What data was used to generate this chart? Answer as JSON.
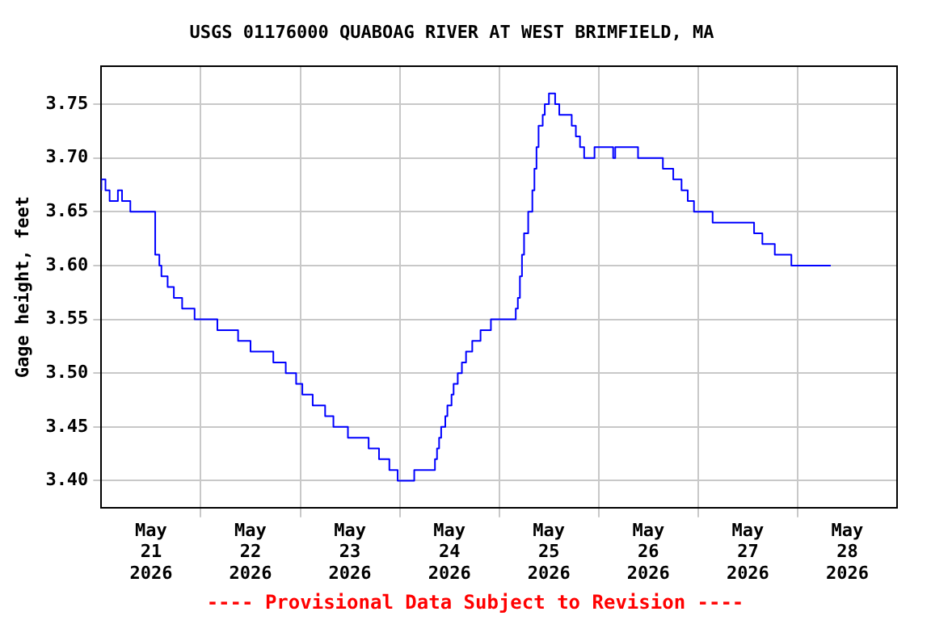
{
  "chart_data": {
    "type": "step",
    "title": "USGS 01176000 QUABOAG RIVER AT WEST BRIMFIELD, MA",
    "ylabel": "Gage height, feet",
    "annotations": [
      "---- Provisional Data Subject to Revision ----"
    ],
    "x": [
      "2026-05-21T00:00",
      "2026-05-21T01:00",
      "2026-05-21T02:00",
      "2026-05-21T04:00",
      "2026-05-21T05:00",
      "2026-05-21T07:00",
      "2026-05-21T13:00",
      "2026-05-21T14:00",
      "2026-05-21T14:30",
      "2026-05-21T16:00",
      "2026-05-21T17:30",
      "2026-05-21T19:30",
      "2026-05-21T22:30",
      "2026-05-22T04:00",
      "2026-05-22T09:00",
      "2026-05-22T12:00",
      "2026-05-22T17:30",
      "2026-05-22T20:30",
      "2026-05-22T23:00",
      "2026-05-23T00:30",
      "2026-05-23T03:00",
      "2026-05-23T06:00",
      "2026-05-23T08:00",
      "2026-05-23T11:30",
      "2026-05-23T16:30",
      "2026-05-23T19:00",
      "2026-05-23T21:30",
      "2026-05-23T23:30",
      "2026-05-24T03:30",
      "2026-05-24T08:30",
      "2026-05-24T09:00",
      "2026-05-24T09:30",
      "2026-05-24T10:00",
      "2026-05-24T11:00",
      "2026-05-24T11:30",
      "2026-05-24T12:30",
      "2026-05-24T13:00",
      "2026-05-24T14:00",
      "2026-05-24T15:00",
      "2026-05-24T16:00",
      "2026-05-24T17:30",
      "2026-05-24T19:30",
      "2026-05-24T22:00",
      "2026-05-25T04:00",
      "2026-05-25T04:30",
      "2026-05-25T05:00",
      "2026-05-25T05:30",
      "2026-05-25T06:00",
      "2026-05-25T07:00",
      "2026-05-25T08:00",
      "2026-05-25T08:30",
      "2026-05-25T09:00",
      "2026-05-25T09:30",
      "2026-05-25T10:30",
      "2026-05-25T11:00",
      "2026-05-25T12:00",
      "2026-05-25T13:30",
      "2026-05-25T14:30",
      "2026-05-25T17:30",
      "2026-05-25T18:30",
      "2026-05-25T19:30",
      "2026-05-25T20:30",
      "2026-05-25T23:00",
      "2026-05-26T03:30",
      "2026-05-26T04:00",
      "2026-05-26T09:30",
      "2026-05-26T15:30",
      "2026-05-26T18:00",
      "2026-05-26T20:00",
      "2026-05-26T21:30",
      "2026-05-26T23:00",
      "2026-05-27T03:30",
      "2026-05-27T13:30",
      "2026-05-27T15:30",
      "2026-05-27T18:30",
      "2026-05-27T22:30",
      "2026-05-28T05:30",
      "2026-05-28T08:00"
    ],
    "series": [
      {
        "color": "#0000ff",
        "values": [
          3.67,
          3.68,
          3.67,
          3.66,
          3.67,
          3.66,
          3.65,
          3.61,
          3.6,
          3.59,
          3.58,
          3.57,
          3.56,
          3.55,
          3.54,
          3.53,
          3.52,
          3.51,
          3.5,
          3.49,
          3.48,
          3.47,
          3.46,
          3.45,
          3.44,
          3.43,
          3.42,
          3.41,
          3.4,
          3.41,
          3.42,
          3.43,
          3.44,
          3.45,
          3.46,
          3.47,
          3.48,
          3.49,
          3.5,
          3.51,
          3.52,
          3.53,
          3.54,
          3.55,
          3.56,
          3.57,
          3.59,
          3.61,
          3.63,
          3.65,
          3.67,
          3.69,
          3.71,
          3.73,
          3.74,
          3.75,
          3.76,
          3.75,
          3.74,
          3.73,
          3.72,
          3.71,
          3.7,
          3.71,
          3.7,
          3.71,
          3.7,
          3.69,
          3.68,
          3.67,
          3.66,
          3.65,
          3.64,
          3.63,
          3.62,
          3.61,
          3.6,
          3.6
        ]
      }
    ],
    "xlim": [
      "2026-05-21T00:00",
      "2026-05-29T00:00"
    ],
    "xticks": [
      {
        "value": "2026-05-21T12:00",
        "label": "May\n21\n2026"
      },
      {
        "value": "2026-05-22T00:00",
        "label": null
      },
      {
        "value": "2026-05-22T12:00",
        "label": "May\n22\n2026"
      },
      {
        "value": "2026-05-23T00:00",
        "label": null
      },
      {
        "value": "2026-05-23T12:00",
        "label": "May\n23\n2026"
      },
      {
        "value": "2026-05-24T00:00",
        "label": null
      },
      {
        "value": "2026-05-24T12:00",
        "label": "May\n24\n2026"
      },
      {
        "value": "2026-05-25T00:00",
        "label": null
      },
      {
        "value": "2026-05-25T12:00",
        "label": "May\n25\n2026"
      },
      {
        "value": "2026-05-26T00:00",
        "label": null
      },
      {
        "value": "2026-05-26T12:00",
        "label": "May\n26\n2026"
      },
      {
        "value": "2026-05-27T00:00",
        "label": null
      },
      {
        "value": "2026-05-27T12:00",
        "label": "May\n27\n2026"
      },
      {
        "value": "2026-05-28T00:00",
        "label": null
      },
      {
        "value": "2026-05-28T12:00",
        "label": "May\n28\n2026"
      }
    ],
    "ylim": [
      3.375,
      3.785
    ],
    "yticks": [
      {
        "value": 3.4,
        "label": "3.40"
      },
      {
        "value": 3.45,
        "label": "3.45"
      },
      {
        "value": 3.5,
        "label": "3.50"
      },
      {
        "value": 3.55,
        "label": "3.55"
      },
      {
        "value": 3.6,
        "label": "3.60"
      },
      {
        "value": 3.65,
        "label": "3.65"
      },
      {
        "value": 3.7,
        "label": "3.70"
      },
      {
        "value": 3.75,
        "label": "3.75"
      }
    ],
    "grid": true,
    "legend": false,
    "marker": "none",
    "line_style": "solid"
  }
}
